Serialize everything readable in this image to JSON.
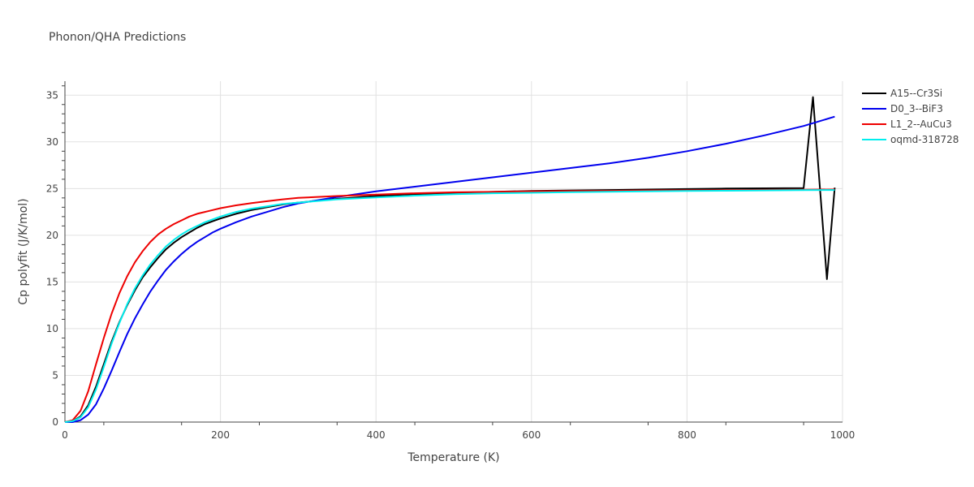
{
  "chart_data": {
    "type": "line",
    "title": "Phonon/QHA Predictions",
    "xlabel": "Temperature (K)",
    "ylabel": "Cp polyfit (J/K/mol)",
    "xlim": [
      0,
      1000
    ],
    "ylim": [
      0,
      36.5
    ],
    "xticks": [
      0,
      200,
      400,
      600,
      800,
      1000
    ],
    "yticks": [
      0,
      5,
      10,
      15,
      20,
      25,
      30,
      35
    ],
    "grid": true,
    "legend_position": "top-right",
    "series": [
      {
        "name": "A15--Cr3Si",
        "color": "#000000",
        "points": [
          [
            0,
            0
          ],
          [
            10,
            0.1
          ],
          [
            20,
            0.6
          ],
          [
            30,
            1.8
          ],
          [
            40,
            3.8
          ],
          [
            50,
            6.2
          ],
          [
            60,
            8.6
          ],
          [
            70,
            10.7
          ],
          [
            80,
            12.5
          ],
          [
            90,
            14.1
          ],
          [
            100,
            15.5
          ],
          [
            110,
            16.6
          ],
          [
            120,
            17.6
          ],
          [
            130,
            18.5
          ],
          [
            140,
            19.2
          ],
          [
            150,
            19.8
          ],
          [
            160,
            20.3
          ],
          [
            170,
            20.8
          ],
          [
            180,
            21.2
          ],
          [
            190,
            21.5
          ],
          [
            200,
            21.8
          ],
          [
            220,
            22.3
          ],
          [
            240,
            22.7
          ],
          [
            260,
            23.0
          ],
          [
            280,
            23.3
          ],
          [
            300,
            23.5
          ],
          [
            350,
            23.9
          ],
          [
            400,
            24.2
          ],
          [
            450,
            24.4
          ],
          [
            500,
            24.55
          ],
          [
            550,
            24.65
          ],
          [
            600,
            24.75
          ],
          [
            650,
            24.8
          ],
          [
            700,
            24.85
          ],
          [
            750,
            24.9
          ],
          [
            800,
            24.95
          ],
          [
            850,
            25.0
          ],
          [
            900,
            25.03
          ],
          [
            950,
            25.05
          ],
          [
            962,
            34.8
          ],
          [
            980,
            15.3
          ],
          [
            990,
            25.1
          ]
        ]
      },
      {
        "name": "D0_3--BiF3",
        "color": "#0000ee",
        "points": [
          [
            0,
            0
          ],
          [
            10,
            0.0
          ],
          [
            20,
            0.2
          ],
          [
            30,
            0.8
          ],
          [
            40,
            1.9
          ],
          [
            50,
            3.6
          ],
          [
            60,
            5.5
          ],
          [
            70,
            7.5
          ],
          [
            80,
            9.4
          ],
          [
            90,
            11.1
          ],
          [
            100,
            12.6
          ],
          [
            110,
            14.0
          ],
          [
            120,
            15.2
          ],
          [
            130,
            16.3
          ],
          [
            140,
            17.2
          ],
          [
            150,
            18.0
          ],
          [
            160,
            18.7
          ],
          [
            170,
            19.3
          ],
          [
            180,
            19.8
          ],
          [
            190,
            20.3
          ],
          [
            200,
            20.7
          ],
          [
            220,
            21.4
          ],
          [
            240,
            22.0
          ],
          [
            260,
            22.5
          ],
          [
            280,
            23.0
          ],
          [
            300,
            23.4
          ],
          [
            350,
            24.1
          ],
          [
            400,
            24.7
          ],
          [
            450,
            25.2
          ],
          [
            500,
            25.7
          ],
          [
            550,
            26.2
          ],
          [
            600,
            26.7
          ],
          [
            650,
            27.2
          ],
          [
            700,
            27.7
          ],
          [
            750,
            28.3
          ],
          [
            800,
            29.0
          ],
          [
            850,
            29.8
          ],
          [
            900,
            30.7
          ],
          [
            950,
            31.7
          ],
          [
            990,
            32.7
          ]
        ]
      },
      {
        "name": "L1_2--AuCu3",
        "color": "#ee0000",
        "points": [
          [
            0,
            0
          ],
          [
            10,
            0.2
          ],
          [
            20,
            1.2
          ],
          [
            30,
            3.3
          ],
          [
            40,
            6.2
          ],
          [
            50,
            9.0
          ],
          [
            60,
            11.6
          ],
          [
            70,
            13.8
          ],
          [
            80,
            15.6
          ],
          [
            90,
            17.1
          ],
          [
            100,
            18.3
          ],
          [
            110,
            19.3
          ],
          [
            120,
            20.1
          ],
          [
            130,
            20.7
          ],
          [
            140,
            21.2
          ],
          [
            150,
            21.6
          ],
          [
            160,
            22.0
          ],
          [
            170,
            22.3
          ],
          [
            180,
            22.5
          ],
          [
            190,
            22.7
          ],
          [
            200,
            22.9
          ],
          [
            220,
            23.2
          ],
          [
            240,
            23.45
          ],
          [
            260,
            23.65
          ],
          [
            280,
            23.85
          ],
          [
            300,
            24.0
          ],
          [
            350,
            24.2
          ],
          [
            400,
            24.35
          ],
          [
            450,
            24.5
          ],
          [
            500,
            24.6
          ],
          [
            550,
            24.65
          ],
          [
            600,
            24.7
          ],
          [
            650,
            24.73
          ],
          [
            700,
            24.76
          ],
          [
            750,
            24.8
          ],
          [
            800,
            24.82
          ],
          [
            850,
            24.84
          ],
          [
            900,
            24.86
          ],
          [
            950,
            24.88
          ],
          [
            990,
            24.9
          ]
        ]
      },
      {
        "name": "oqmd-318728",
        "color": "#00eeee",
        "points": [
          [
            0,
            0
          ],
          [
            10,
            0.1
          ],
          [
            20,
            0.5
          ],
          [
            30,
            1.6
          ],
          [
            40,
            3.5
          ],
          [
            50,
            5.9
          ],
          [
            60,
            8.4
          ],
          [
            70,
            10.6
          ],
          [
            80,
            12.6
          ],
          [
            90,
            14.3
          ],
          [
            100,
            15.7
          ],
          [
            110,
            16.9
          ],
          [
            120,
            17.9
          ],
          [
            130,
            18.8
          ],
          [
            140,
            19.5
          ],
          [
            150,
            20.1
          ],
          [
            160,
            20.6
          ],
          [
            170,
            21.0
          ],
          [
            180,
            21.4
          ],
          [
            190,
            21.7
          ],
          [
            200,
            22.0
          ],
          [
            220,
            22.5
          ],
          [
            240,
            22.85
          ],
          [
            260,
            23.1
          ],
          [
            280,
            23.35
          ],
          [
            300,
            23.5
          ],
          [
            350,
            23.85
          ],
          [
            400,
            24.05
          ],
          [
            450,
            24.25
          ],
          [
            500,
            24.4
          ],
          [
            550,
            24.5
          ],
          [
            600,
            24.55
          ],
          [
            650,
            24.62
          ],
          [
            700,
            24.66
          ],
          [
            750,
            24.7
          ],
          [
            800,
            24.74
          ],
          [
            850,
            24.77
          ],
          [
            900,
            24.8
          ],
          [
            950,
            24.83
          ],
          [
            990,
            24.85
          ]
        ]
      }
    ]
  }
}
